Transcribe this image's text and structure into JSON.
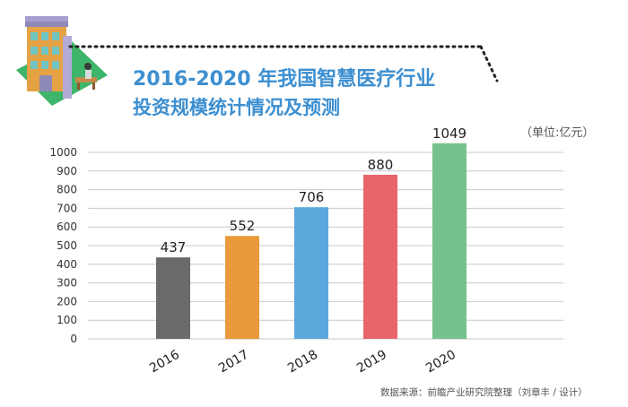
{
  "title_line1": "2016-2020 年我国智慧医疗行业",
  "title_line2": "投资规模统计情况及预测",
  "unit": "（单位:亿元）",
  "source": "数据来源：前瞻产业研究院整理（刘章丰 / 设计）",
  "colors": {
    "title": "#3d8fd0",
    "bars": [
      "#6b6b6b",
      "#ea9a3a",
      "#5aa8dc",
      "#e8666a",
      "#76c28c"
    ],
    "grid": "#c8c8c8"
  },
  "chart_data": {
    "type": "bar",
    "categories": [
      "2016",
      "2017",
      "2018",
      "2019",
      "2020"
    ],
    "values": [
      437,
      552,
      706,
      880,
      1049
    ],
    "data_labels": [
      "437",
      "552",
      "706",
      "880",
      "1049"
    ],
    "yticks": [
      0,
      100,
      200,
      300,
      400,
      500,
      600,
      700,
      800,
      900,
      1000
    ],
    "ylim": [
      0,
      1050
    ],
    "grid": true,
    "legend": "none"
  }
}
